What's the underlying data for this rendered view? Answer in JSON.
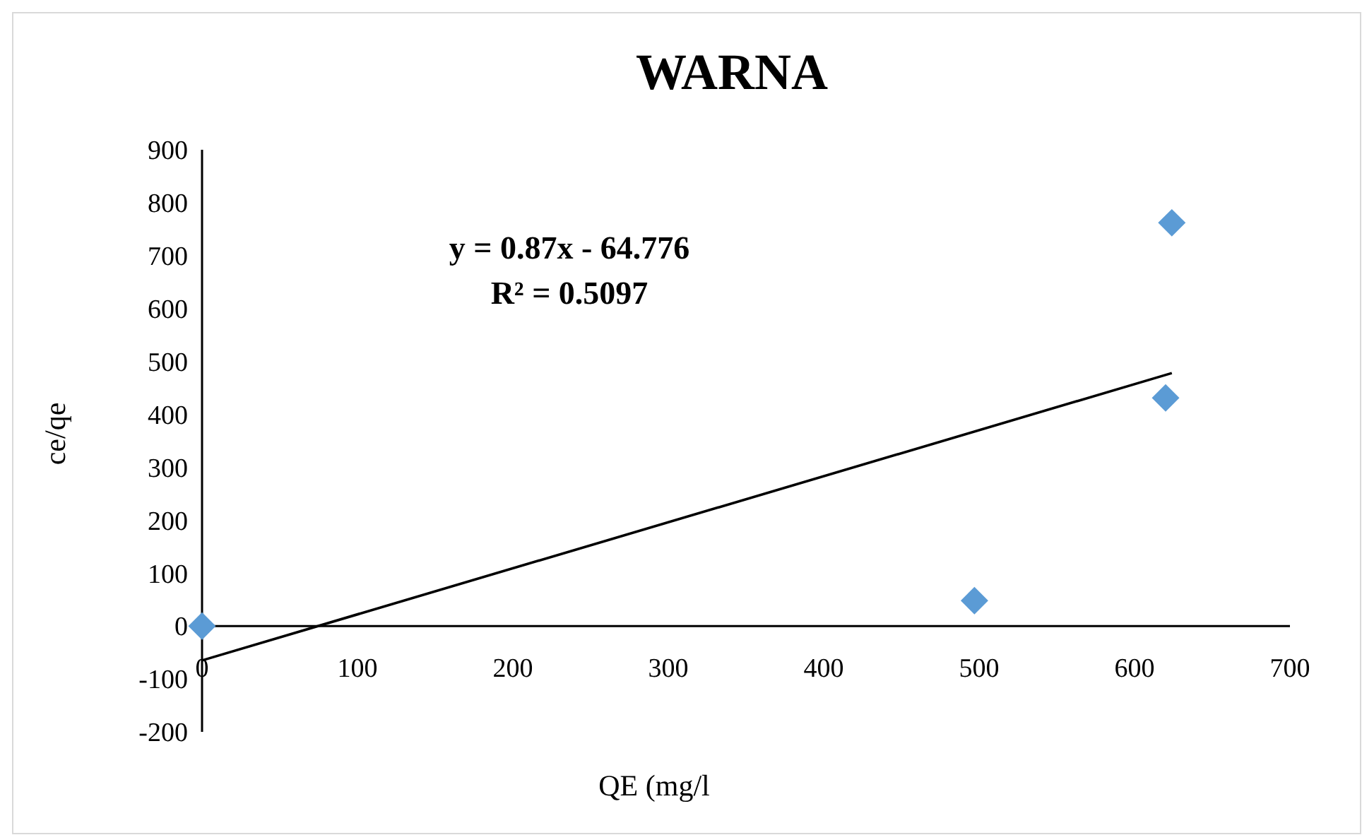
{
  "chart_data": {
    "type": "scatter",
    "title": "WARNA",
    "xlabel": "QE (mg/l",
    "ylabel": "ce/qe",
    "xlim": [
      0,
      700
    ],
    "xticks": [
      0,
      100,
      200,
      300,
      400,
      500,
      600,
      700
    ],
    "ylim": [
      -200,
      900
    ],
    "yticks": [
      -200,
      -100,
      0,
      100,
      200,
      300,
      400,
      500,
      600,
      700,
      800,
      900
    ],
    "grid": false,
    "series": [
      {
        "color": "#5b9bd5",
        "marker": "diamond",
        "x": [
          0,
          497,
          620,
          624
        ],
        "values": [
          0,
          48,
          431,
          762
        ]
      },
      {
        "type": "line",
        "color": "#000000",
        "marker": "none",
        "line_style": "solid",
        "x": [
          0,
          624
        ],
        "values": [
          -65,
          478
        ]
      }
    ],
    "annotations": [
      "y = 0.87x - 64.776",
      "R² = 0.5097"
    ]
  }
}
